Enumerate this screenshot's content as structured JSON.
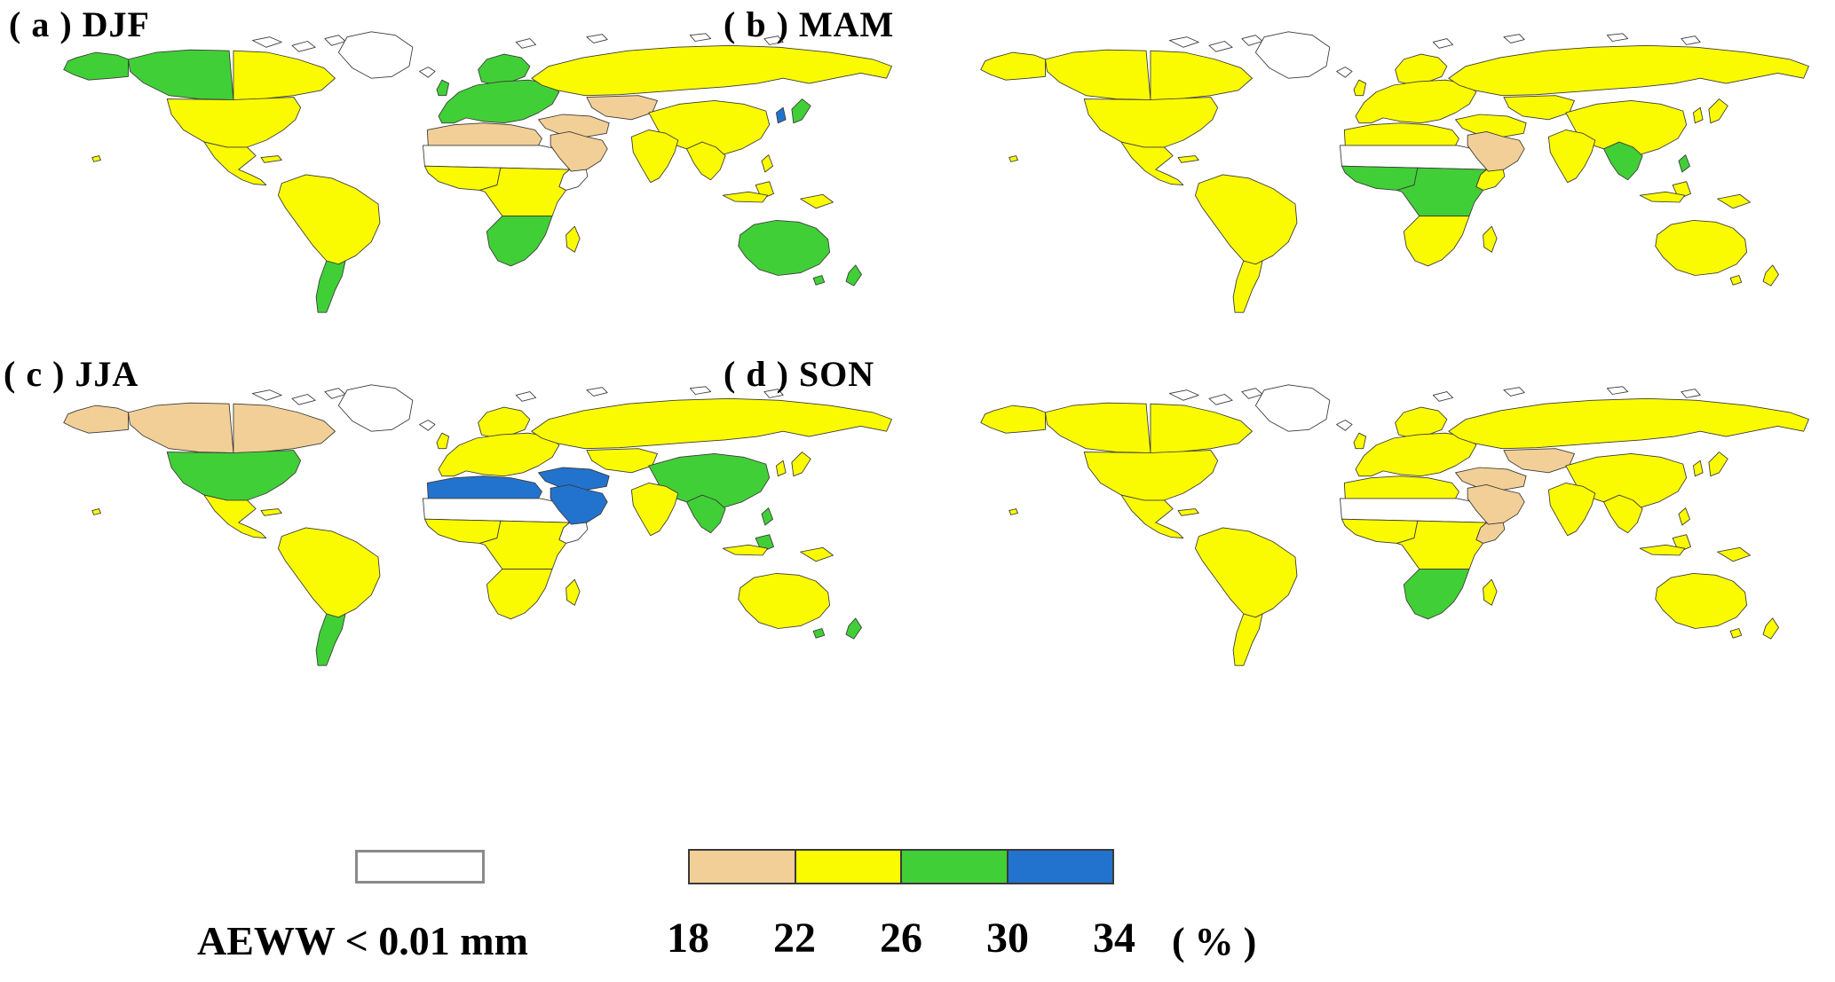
{
  "figure": {
    "description": "Four seasonal global choropleth maps"
  },
  "chart_data": {
    "type": "heatmap",
    "subtype": "choropleth-world-maps",
    "no_data_label": "AEWW < 0.01 mm",
    "colors": {
      "tan": "#F2CF96",
      "yellow": "#FBFB00",
      "green": "#41CF37",
      "blue": "#2273CE",
      "white": "#FFFFFF",
      "coast": "#3a3a3a"
    },
    "colorbar": {
      "ticks": [
        18,
        22,
        26,
        30,
        34
      ],
      "unit": "( % )",
      "bins": [
        {
          "min": 18,
          "max": 22,
          "color": "#F2CF96"
        },
        {
          "min": 22,
          "max": 26,
          "color": "#FBFB00"
        },
        {
          "min": 26,
          "max": 30,
          "color": "#41CF37"
        },
        {
          "min": 30,
          "max": 34,
          "color": "#2273CE"
        }
      ]
    },
    "panels": [
      {
        "id": "a",
        "label": "( a ) DJF",
        "fills": {
          "alaska": "green",
          "canada_w": "green",
          "canada_e": "yellow",
          "usa": "yellow",
          "mexico": "yellow",
          "greenland": "white",
          "samerica_n": "yellow",
          "samerica_s": "green",
          "iceland": "white",
          "uk": "green",
          "europe": "green",
          "scandinavia": "green",
          "maghreb": "tan",
          "sahara": "white",
          "westafrica": "yellow",
          "horn": "white",
          "centralafrica": "yellow",
          "southernafrica": "green",
          "madagascar": "yellow",
          "mideast_n": "tan",
          "arabia": "tan",
          "russia": "yellow",
          "centralasia": "tan",
          "china": "yellow",
          "india": "yellow",
          "seasia": "yellow",
          "indonesia": "yellow",
          "borneo": "yellow",
          "newguinea": "yellow",
          "philippines": "yellow",
          "japan": "green",
          "korea": "blue",
          "australia": "green",
          "tasmania": "green",
          "newzealand": "green",
          "hawaii": "yellow",
          "caribbean": "yellow"
        }
      },
      {
        "id": "b",
        "label": "( b ) MAM",
        "fills": {
          "alaska": "yellow",
          "canada_w": "yellow",
          "canada_e": "yellow",
          "usa": "yellow",
          "mexico": "yellow",
          "greenland": "white",
          "samerica_n": "yellow",
          "samerica_s": "yellow",
          "iceland": "white",
          "uk": "yellow",
          "europe": "yellow",
          "scandinavia": "yellow",
          "maghreb": "yellow",
          "sahara": "white",
          "westafrica": "green",
          "horn": "yellow",
          "centralafrica": "green",
          "southernafrica": "yellow",
          "madagascar": "yellow",
          "mideast_n": "yellow",
          "arabia": "tan",
          "russia": "yellow",
          "centralasia": "yellow",
          "china": "yellow",
          "india": "yellow",
          "seasia": "green",
          "indonesia": "yellow",
          "borneo": "yellow",
          "newguinea": "yellow",
          "philippines": "green",
          "japan": "yellow",
          "korea": "yellow",
          "australia": "yellow",
          "tasmania": "yellow",
          "newzealand": "yellow",
          "hawaii": "yellow",
          "caribbean": "yellow"
        }
      },
      {
        "id": "c",
        "label": "( c ) JJA",
        "fills": {
          "alaska": "tan",
          "canada_w": "tan",
          "canada_e": "tan",
          "usa": "green",
          "mexico": "yellow",
          "greenland": "white",
          "samerica_n": "yellow",
          "samerica_s": "green",
          "iceland": "white",
          "uk": "yellow",
          "europe": "yellow",
          "scandinavia": "yellow",
          "maghreb": "blue",
          "sahara": "white",
          "westafrica": "yellow",
          "horn": "white",
          "centralafrica": "yellow",
          "southernafrica": "yellow",
          "madagascar": "yellow",
          "mideast_n": "blue",
          "arabia": "blue",
          "russia": "yellow",
          "centralasia": "yellow",
          "china": "green",
          "india": "yellow",
          "seasia": "green",
          "indonesia": "yellow",
          "borneo": "green",
          "newguinea": "yellow",
          "philippines": "green",
          "japan": "yellow",
          "korea": "yellow",
          "australia": "yellow",
          "tasmania": "green",
          "newzealand": "green",
          "hawaii": "yellow",
          "caribbean": "yellow"
        }
      },
      {
        "id": "d",
        "label": "( d ) SON",
        "fills": {
          "alaska": "yellow",
          "canada_w": "yellow",
          "canada_e": "yellow",
          "usa": "yellow",
          "mexico": "yellow",
          "greenland": "white",
          "samerica_n": "yellow",
          "samerica_s": "yellow",
          "iceland": "white",
          "uk": "yellow",
          "europe": "yellow",
          "scandinavia": "yellow",
          "maghreb": "yellow",
          "sahara": "white",
          "westafrica": "yellow",
          "horn": "tan",
          "centralafrica": "yellow",
          "southernafrica": "green",
          "madagascar": "yellow",
          "mideast_n": "tan",
          "arabia": "tan",
          "russia": "yellow",
          "centralasia": "tan",
          "china": "yellow",
          "india": "yellow",
          "seasia": "yellow",
          "indonesia": "yellow",
          "borneo": "yellow",
          "newguinea": "yellow",
          "philippines": "yellow",
          "japan": "yellow",
          "korea": "yellow",
          "australia": "yellow",
          "tasmania": "yellow",
          "newzealand": "yellow",
          "hawaii": "yellow",
          "caribbean": "yellow"
        }
      }
    ]
  }
}
